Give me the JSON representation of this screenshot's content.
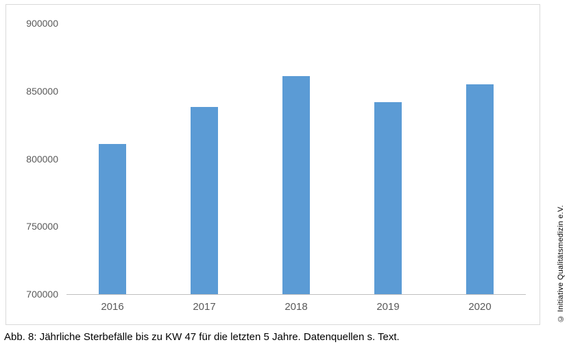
{
  "chart_data": {
    "type": "bar",
    "categories": [
      "2016",
      "2017",
      "2018",
      "2019",
      "2020"
    ],
    "values": [
      811000,
      838000,
      861000,
      842000,
      855000
    ],
    "title": "",
    "xlabel": "",
    "ylabel": "",
    "ylim": [
      700000,
      900000
    ],
    "yticks": [
      700000,
      750000,
      800000,
      850000,
      900000
    ],
    "grid": false,
    "legend": "none",
    "bar_color": "#5b9bd5"
  },
  "caption": "Abb. 8: Jährliche Sterbefälle bis zu KW 47 für die letzten 5 Jahre. Datenquellen s. Text.",
  "copyright": "© Initiative Qualitätsmedizin e.V.",
  "colors": {
    "bar": "#5b9bd5",
    "axis_line": "#bfbfbf",
    "frame_border": "#d9d9d9",
    "tick_text": "#595959"
  }
}
